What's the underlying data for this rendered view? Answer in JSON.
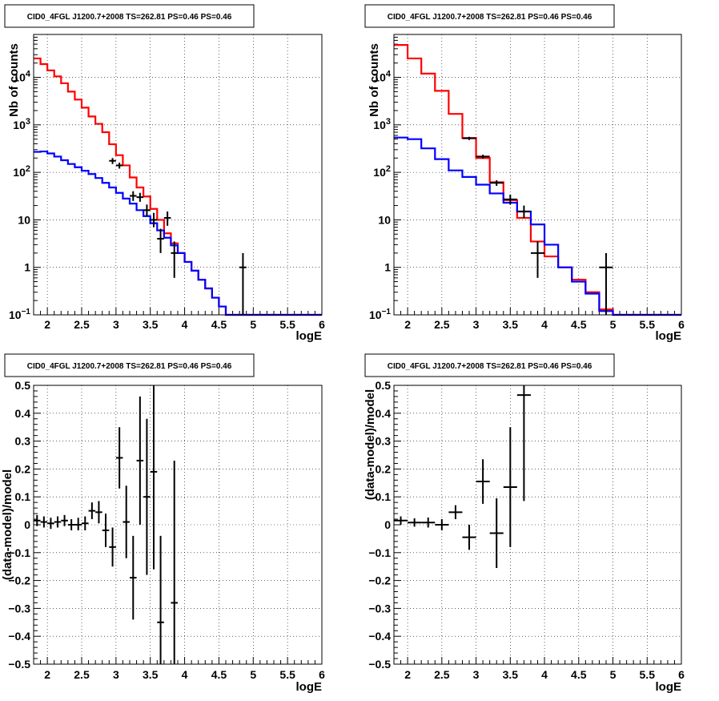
{
  "colors": {
    "data": "#000000",
    "total_model": "#ff0000",
    "component_model": "#0000ff"
  },
  "chart_data": [
    {
      "id": "tl",
      "type": "line",
      "title": "CID0_4FGL J1200.7+2008 TS=262.81 PS=0.46 PS=0.46",
      "xlabel": "logE",
      "ylabel": "Nb of counts",
      "xlim": [
        1.8,
        6.0
      ],
      "ylim": [
        0.1,
        80000
      ],
      "yscale": "log",
      "grid": true,
      "x_ticks": [
        "2",
        "2.5",
        "3",
        "3.5",
        "4",
        "4.5",
        "5",
        "5.5",
        "6"
      ],
      "y_ticks": [
        "10⁻¹",
        "1",
        "10",
        "10²",
        "10³",
        "10⁴"
      ],
      "bin_edges": [
        1.8,
        1.9,
        2.0,
        2.1,
        2.2,
        2.3,
        2.4,
        2.5,
        2.6,
        2.7,
        2.8,
        2.9,
        3.0,
        3.1,
        3.2,
        3.3,
        3.4,
        3.5,
        3.6,
        3.7,
        3.8,
        3.9,
        4.0,
        4.1,
        4.2,
        4.3,
        4.4,
        4.5,
        4.6,
        4.7,
        4.8,
        4.9,
        5.0,
        5.1,
        5.2,
        5.3,
        5.4,
        5.5,
        5.6,
        5.7,
        5.8,
        5.9,
        6.0
      ],
      "series": [
        {
          "role": "total_model",
          "values": [
            25000,
            19000,
            14000,
            10500,
            7500,
            5000,
            3400,
            2300,
            1500,
            1050,
            700,
            390,
            230,
            140,
            78,
            48,
            31,
            17,
            10,
            5.2,
            3.2,
            2.0,
            1.3,
            0.85,
            0.55,
            0.36,
            0.23,
            0.15,
            0.1,
            0.1,
            0.1,
            0.1,
            0.1,
            0.1,
            0.1,
            0.1,
            0.1,
            0.1,
            0.1,
            0.1,
            0.1,
            0.1
          ]
        },
        {
          "role": "component_model",
          "values": [
            270,
            275,
            250,
            215,
            180,
            150,
            128,
            108,
            92,
            76,
            60,
            48,
            37,
            28,
            22,
            16,
            12,
            8.5,
            6,
            4.2,
            2.9,
            2.0,
            1.3,
            0.85,
            0.55,
            0.36,
            0.23,
            0.15,
            0.1,
            0.1,
            0.1,
            0.1,
            0.1,
            0.1,
            0.1,
            0.1,
            0.1,
            0.1,
            0.1,
            0.1,
            0.1,
            0.1
          ]
        }
      ],
      "points": [
        {
          "x": 2.95,
          "y": 175,
          "xerr": 0.05,
          "ylo": 150,
          "yhi": 200
        },
        {
          "x": 3.05,
          "y": 140,
          "xerr": 0.05,
          "ylo": 120,
          "yhi": 160
        },
        {
          "x": 3.25,
          "y": 32,
          "xerr": 0.05,
          "ylo": 25,
          "yhi": 40
        },
        {
          "x": 3.35,
          "y": 30,
          "xerr": 0.05,
          "ylo": 24,
          "yhi": 37
        },
        {
          "x": 3.45,
          "y": 16,
          "xerr": 0.05,
          "ylo": 12,
          "yhi": 21
        },
        {
          "x": 3.55,
          "y": 10,
          "xerr": 0.05,
          "ylo": 7,
          "yhi": 14
        },
        {
          "x": 3.65,
          "y": 4,
          "xerr": 0.05,
          "ylo": 2,
          "yhi": 6.5
        },
        {
          "x": 3.75,
          "y": 11,
          "xerr": 0.05,
          "ylo": 7.5,
          "yhi": 15
        },
        {
          "x": 3.85,
          "y": 2,
          "xerr": 0.05,
          "ylo": 0.6,
          "yhi": 3.5
        },
        {
          "x": 4.85,
          "y": 1,
          "xerr": 0.05,
          "ylo": 0.1,
          "yhi": 2.0
        }
      ]
    },
    {
      "id": "tr",
      "type": "line",
      "title": "CID0_4FGL J1200.7+2008 TS=262.81 PS=0.46 PS=0.46",
      "xlabel": "logE",
      "ylabel": "Nb of counts",
      "xlim": [
        1.8,
        6.0
      ],
      "ylim": [
        0.1,
        80000
      ],
      "yscale": "log",
      "grid": true,
      "x_ticks": [
        "2",
        "2.5",
        "3",
        "3.5",
        "4",
        "4.5",
        "5",
        "5.5",
        "6"
      ],
      "y_ticks": [
        "10⁻¹",
        "1",
        "10",
        "10²",
        "10³",
        "10⁴"
      ],
      "bin_edges": [
        1.8,
        2.0,
        2.2,
        2.4,
        2.6,
        2.8,
        3.0,
        3.2,
        3.4,
        3.6,
        3.8,
        4.0,
        4.2,
        4.4,
        4.6,
        4.8,
        5.0,
        5.2,
        5.4,
        5.6,
        5.8,
        6.0
      ],
      "series": [
        {
          "role": "total_model",
          "values": [
            48000,
            25000,
            12000,
            5200,
            1700,
            530,
            200,
            62,
            26,
            11,
            3.5,
            1.7,
            1.0,
            0.55,
            0.3,
            0.13,
            0.1,
            0.1,
            0.1,
            0.1,
            0.1
          ]
        },
        {
          "role": "component_model",
          "values": [
            540,
            500,
            320,
            190,
            110,
            80,
            55,
            36,
            23,
            15,
            8,
            3,
            1.0,
            0.5,
            0.28,
            0.12,
            0.1,
            0.1,
            0.1,
            0.1,
            0.1
          ]
        }
      ],
      "points": [
        {
          "x": 2.9,
          "y": 520,
          "xerr": 0.1,
          "ylo": 480,
          "yhi": 560
        },
        {
          "x": 3.1,
          "y": 215,
          "xerr": 0.1,
          "ylo": 195,
          "yhi": 235
        },
        {
          "x": 3.3,
          "y": 60,
          "xerr": 0.1,
          "ylo": 52,
          "yhi": 68
        },
        {
          "x": 3.5,
          "y": 27,
          "xerr": 0.1,
          "ylo": 21,
          "yhi": 34
        },
        {
          "x": 3.7,
          "y": 15,
          "xerr": 0.1,
          "ylo": 11,
          "yhi": 20
        },
        {
          "x": 3.9,
          "y": 2,
          "xerr": 0.1,
          "ylo": 0.6,
          "yhi": 3.5
        },
        {
          "x": 4.9,
          "y": 1,
          "xerr": 0.1,
          "ylo": 0.1,
          "yhi": 2.0
        }
      ]
    },
    {
      "id": "bl",
      "type": "scatter",
      "title": "CID0_4FGL J1200.7+2008 TS=262.81 PS=0.46 PS=0.46",
      "xlabel": "logE",
      "ylabel": "(data-model)/model",
      "xlim": [
        1.8,
        6.0
      ],
      "ylim": [
        -0.5,
        0.5
      ],
      "yscale": "linear",
      "grid": true,
      "x_ticks": [
        "2",
        "2.5",
        "3",
        "3.5",
        "4",
        "4.5",
        "5",
        "5.5",
        "6"
      ],
      "y_ticks": [
        "−0.5",
        "−0.4",
        "−0.3",
        "−0.2",
        "−0.1",
        "0",
        "0.1",
        "0.2",
        "0.3",
        "0.4",
        "0.5"
      ],
      "points": [
        {
          "x": 1.85,
          "y": 0.015,
          "xerr": 0.05,
          "ylo": -0.005,
          "yhi": 0.035
        },
        {
          "x": 1.95,
          "y": 0.01,
          "xerr": 0.05,
          "ylo": -0.01,
          "yhi": 0.03
        },
        {
          "x": 2.05,
          "y": 0.005,
          "xerr": 0.05,
          "ylo": -0.015,
          "yhi": 0.025
        },
        {
          "x": 2.15,
          "y": 0.01,
          "xerr": 0.05,
          "ylo": -0.01,
          "yhi": 0.03
        },
        {
          "x": 2.25,
          "y": 0.015,
          "xerr": 0.05,
          "ylo": -0.005,
          "yhi": 0.035
        },
        {
          "x": 2.35,
          "y": 0.0,
          "xerr": 0.05,
          "ylo": -0.02,
          "yhi": 0.02
        },
        {
          "x": 2.45,
          "y": 0.0,
          "xerr": 0.05,
          "ylo": -0.02,
          "yhi": 0.025
        },
        {
          "x": 2.55,
          "y": 0.005,
          "xerr": 0.05,
          "ylo": -0.02,
          "yhi": 0.03
        },
        {
          "x": 2.65,
          "y": 0.05,
          "xerr": 0.05,
          "ylo": 0.02,
          "yhi": 0.08
        },
        {
          "x": 2.75,
          "y": 0.045,
          "xerr": 0.05,
          "ylo": 0.005,
          "yhi": 0.085
        },
        {
          "x": 2.85,
          "y": -0.02,
          "xerr": 0.05,
          "ylo": -0.08,
          "yhi": 0.04
        },
        {
          "x": 2.95,
          "y": -0.08,
          "xerr": 0.05,
          "ylo": -0.15,
          "yhi": -0.01
        },
        {
          "x": 3.05,
          "y": 0.24,
          "xerr": 0.05,
          "ylo": 0.13,
          "yhi": 0.35
        },
        {
          "x": 3.15,
          "y": 0.01,
          "xerr": 0.05,
          "ylo": -0.12,
          "yhi": 0.14
        },
        {
          "x": 3.25,
          "y": -0.19,
          "xerr": 0.05,
          "ylo": -0.34,
          "yhi": -0.04
        },
        {
          "x": 3.35,
          "y": 0.23,
          "xerr": 0.05,
          "ylo": 0.0,
          "yhi": 0.46
        },
        {
          "x": 3.45,
          "y": 0.1,
          "xerr": 0.05,
          "ylo": -0.18,
          "yhi": 0.38
        },
        {
          "x": 3.55,
          "y": 0.19,
          "xerr": 0.05,
          "ylo": -0.16,
          "yhi": 0.5
        },
        {
          "x": 3.65,
          "y": -0.35,
          "xerr": 0.05,
          "ylo": -0.5,
          "yhi": -0.04
        },
        {
          "x": 3.85,
          "y": -0.28,
          "xerr": 0.05,
          "ylo": -0.5,
          "yhi": 0.23
        }
      ]
    },
    {
      "id": "br",
      "type": "scatter",
      "title": "CID0_4FGL J1200.7+2008 TS=262.81 PS=0.46 PS=0.46",
      "xlabel": "logE",
      "ylabel": "(data-model)/model",
      "xlim": [
        1.8,
        6.0
      ],
      "ylim": [
        -0.5,
        0.5
      ],
      "yscale": "linear",
      "grid": true,
      "x_ticks": [
        "2",
        "2.5",
        "3",
        "3.5",
        "4",
        "4.5",
        "5",
        "5.5",
        "6"
      ],
      "y_ticks": [
        "−0.5",
        "−0.4",
        "−0.3",
        "−0.2",
        "−0.1",
        "0",
        "0.1",
        "0.2",
        "0.3",
        "0.4",
        "0.5"
      ],
      "points": [
        {
          "x": 1.9,
          "y": 0.015,
          "xerr": 0.1,
          "ylo": 0.0,
          "yhi": 0.03
        },
        {
          "x": 2.1,
          "y": 0.008,
          "xerr": 0.1,
          "ylo": -0.007,
          "yhi": 0.023
        },
        {
          "x": 2.3,
          "y": 0.008,
          "xerr": 0.1,
          "ylo": -0.01,
          "yhi": 0.026
        },
        {
          "x": 2.5,
          "y": 0.0,
          "xerr": 0.1,
          "ylo": -0.02,
          "yhi": 0.02
        },
        {
          "x": 2.7,
          "y": 0.045,
          "xerr": 0.1,
          "ylo": 0.02,
          "yhi": 0.07
        },
        {
          "x": 2.9,
          "y": -0.045,
          "xerr": 0.1,
          "ylo": -0.09,
          "yhi": 0.0
        },
        {
          "x": 3.1,
          "y": 0.155,
          "xerr": 0.1,
          "ylo": 0.075,
          "yhi": 0.235
        },
        {
          "x": 3.3,
          "y": -0.03,
          "xerr": 0.1,
          "ylo": -0.155,
          "yhi": 0.095
        },
        {
          "x": 3.5,
          "y": 0.135,
          "xerr": 0.1,
          "ylo": -0.08,
          "yhi": 0.35
        },
        {
          "x": 3.7,
          "y": 0.465,
          "xerr": 0.1,
          "ylo": 0.085,
          "yhi": 0.5
        }
      ]
    }
  ]
}
